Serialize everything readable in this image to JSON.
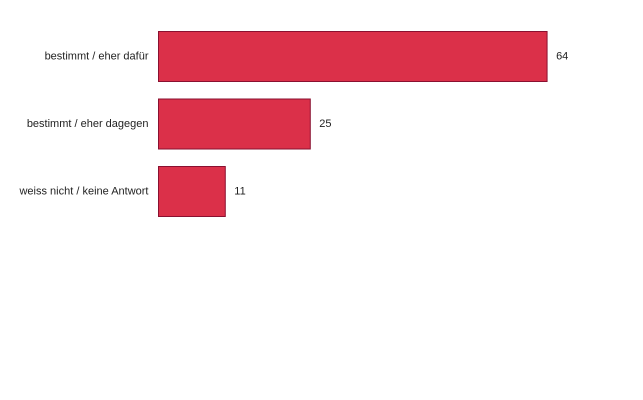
{
  "chart_data": {
    "type": "bar",
    "orientation": "horizontal",
    "categories": [
      "bestimmt / eher dafür",
      "bestimmt / eher dagegen",
      "weiss nicht / keine Antwort"
    ],
    "values": [
      64,
      25,
      11
    ],
    "title": "",
    "xlabel": "",
    "ylabel": "",
    "xlim": [
      0,
      70
    ],
    "grid": false,
    "legend": "none",
    "bar_color": "#db3049",
    "bar_border_color": "#8a1030"
  }
}
